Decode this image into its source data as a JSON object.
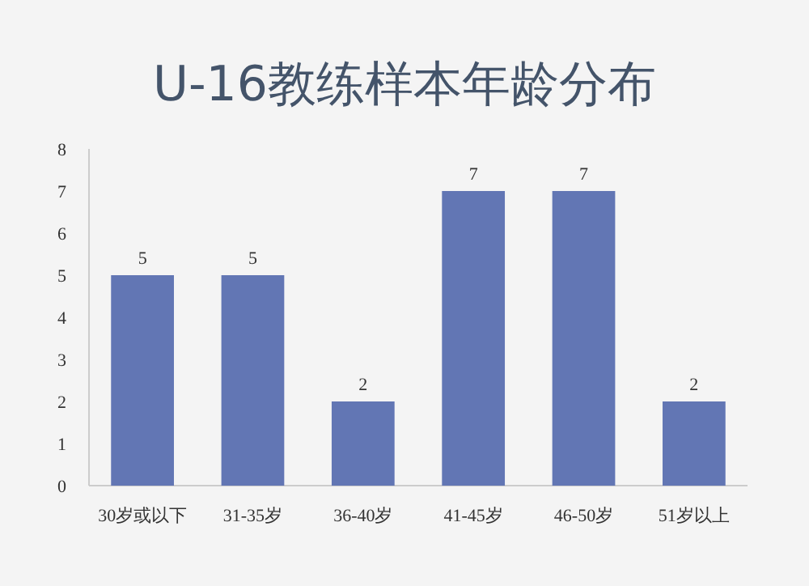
{
  "chart_data": {
    "type": "bar",
    "title": "U-16教练样本年龄分布",
    "categories": [
      "30岁或以下",
      "31-35岁",
      "36-40岁",
      "41-45岁",
      "46-50岁",
      "51岁以上"
    ],
    "values": [
      5,
      5,
      2,
      7,
      7,
      2
    ],
    "color": "#6276b4",
    "ylim": [
      0,
      8
    ],
    "yticks": [
      0,
      1,
      2,
      3,
      4,
      5,
      6,
      7,
      8
    ],
    "grid": false,
    "data_labels": true
  }
}
